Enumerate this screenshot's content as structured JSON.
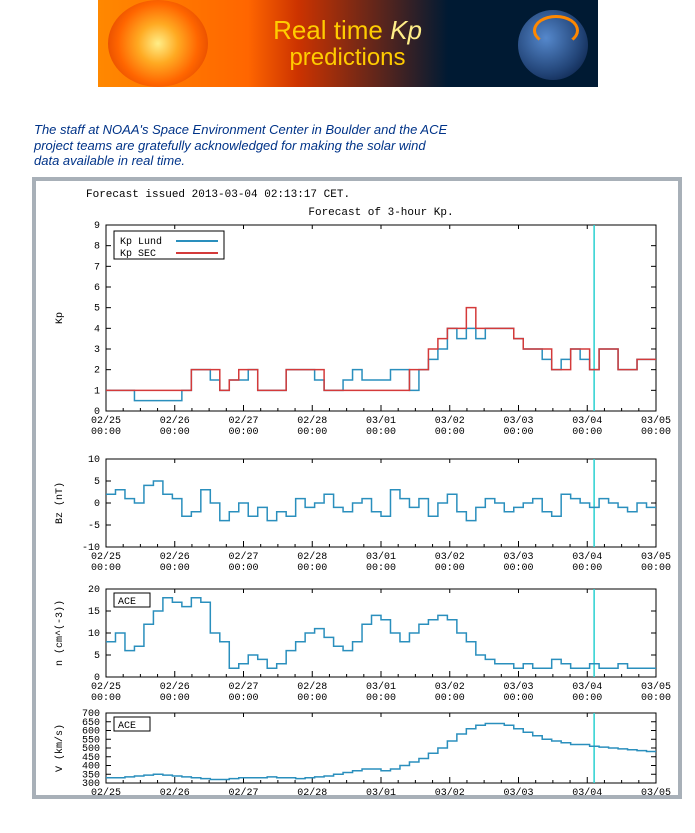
{
  "banner": {
    "line1a": "Real time ",
    "line1b": "Kp",
    "line2": "predictions"
  },
  "ack": "The staff at NOAA's Space Environment Center in Boulder and the ACE project teams are gratefully acknowledged for making the solar wind data available in real time.",
  "meta": {
    "forecast_issued": "Forecast issued 2013-03-04 02:13:17 CET.",
    "title": "Forecast of 3-hour Kp."
  },
  "colors": {
    "line_blue": "#2a8fbd",
    "line_red": "#d43a3a",
    "axis": "#000000",
    "tick": "#000000",
    "text": "#000000",
    "nowline": "#2ad0d0"
  },
  "font": {
    "family": "Courier New, monospace",
    "size_label": 10,
    "size_title": 11
  },
  "x_axis": {
    "labels_top": [
      "02/25",
      "02/26",
      "02/27",
      "02/28",
      "03/01",
      "03/02",
      "03/03",
      "03/04",
      "03/05"
    ],
    "labels_bot": [
      "00:00",
      "00:00",
      "00:00",
      "00:00",
      "00:00",
      "00:00",
      "00:00",
      "00:00",
      "00:00"
    ],
    "now_index": 7.1
  },
  "panel_kp": {
    "ylabel": "Kp",
    "ylim": [
      0,
      9
    ],
    "yticks": [
      0,
      1,
      2,
      3,
      4,
      5,
      6,
      7,
      8,
      9
    ],
    "legend": [
      {
        "label": "Kp Lund",
        "color": "#2a8fbd"
      },
      {
        "label": "Kp SEC",
        "color": "#d43a3a"
      }
    ],
    "series_lund": [
      1,
      1,
      1,
      0.5,
      0.5,
      0.5,
      0.5,
      0.5,
      1,
      2,
      2,
      1.5,
      1,
      1.5,
      1.5,
      2,
      1,
      1,
      1,
      2,
      2,
      2,
      1.5,
      1,
      1,
      1.5,
      2,
      1.5,
      1.5,
      1.5,
      2,
      2,
      1,
      2,
      2.5,
      3,
      4,
      3.5,
      4,
      3.5,
      4,
      4,
      4,
      3.5,
      3,
      3,
      2.5,
      2,
      2.5,
      3,
      2.5,
      2,
      3,
      3,
      2,
      2,
      2.5,
      2.5
    ],
    "series_sec": [
      1,
      1,
      1,
      1,
      1,
      1,
      1,
      1,
      1,
      2,
      2,
      2,
      1,
      1.5,
      2,
      2,
      1,
      1,
      1,
      2,
      2,
      2,
      2,
      1,
      1,
      1,
      1,
      1,
      1,
      1,
      1,
      1,
      2,
      2,
      3,
      3.5,
      4,
      4,
      5,
      4,
      4,
      4,
      4,
      3.5,
      3,
      3,
      3,
      2,
      2,
      3,
      3,
      2,
      3,
      3,
      2,
      2,
      2.5,
      2.5
    ]
  },
  "panel_bz": {
    "ylabel": "Bz (nT)",
    "ylim": [
      -10,
      10
    ],
    "yticks": [
      -10,
      -5,
      0,
      5,
      10
    ],
    "data": [
      2,
      3,
      1,
      0,
      4,
      5,
      2,
      1,
      -3,
      -2,
      3,
      0,
      -4,
      -2,
      0,
      -3,
      -1,
      -4,
      -2,
      -3,
      1,
      -1,
      0,
      2,
      -1,
      -2,
      0,
      1,
      -2,
      -3,
      3,
      1,
      -1,
      1,
      -3,
      0,
      2,
      -2,
      -4,
      -1,
      1,
      0,
      -2,
      -1,
      0,
      1,
      -2,
      -3,
      2,
      1,
      0,
      -1,
      1,
      0,
      -1,
      -2,
      0,
      -1
    ]
  },
  "panel_n": {
    "ylabel": "n (cm^(-3))",
    "ylim": [
      0,
      20
    ],
    "yticks": [
      0,
      5,
      10,
      15,
      20
    ],
    "legend_label": "ACE",
    "data": [
      8,
      10,
      6,
      7,
      12,
      15,
      18,
      17,
      16,
      18,
      17,
      10,
      8,
      2,
      3,
      5,
      4,
      2,
      3,
      6,
      8,
      10,
      11,
      9,
      7,
      6,
      8,
      12,
      14,
      13,
      10,
      8,
      10,
      12,
      13,
      14,
      13,
      10,
      8,
      5,
      4,
      3,
      3,
      2,
      3,
      2,
      2,
      4,
      3,
      2,
      2,
      3,
      2,
      2,
      3,
      2,
      2,
      2
    ]
  },
  "panel_v": {
    "ylabel": "V (km/s)",
    "ylim": [
      300,
      700
    ],
    "yticks": [
      300,
      350,
      400,
      450,
      500,
      550,
      600,
      650,
      700
    ],
    "legend_label": "ACE",
    "data": [
      330,
      330,
      335,
      340,
      345,
      350,
      345,
      340,
      335,
      330,
      325,
      320,
      320,
      325,
      330,
      330,
      330,
      335,
      330,
      330,
      325,
      330,
      335,
      340,
      350,
      360,
      370,
      380,
      380,
      370,
      380,
      400,
      420,
      440,
      470,
      500,
      540,
      580,
      610,
      630,
      640,
      640,
      630,
      610,
      590,
      570,
      550,
      540,
      530,
      520,
      520,
      510,
      505,
      500,
      495,
      490,
      485,
      480
    ]
  }
}
